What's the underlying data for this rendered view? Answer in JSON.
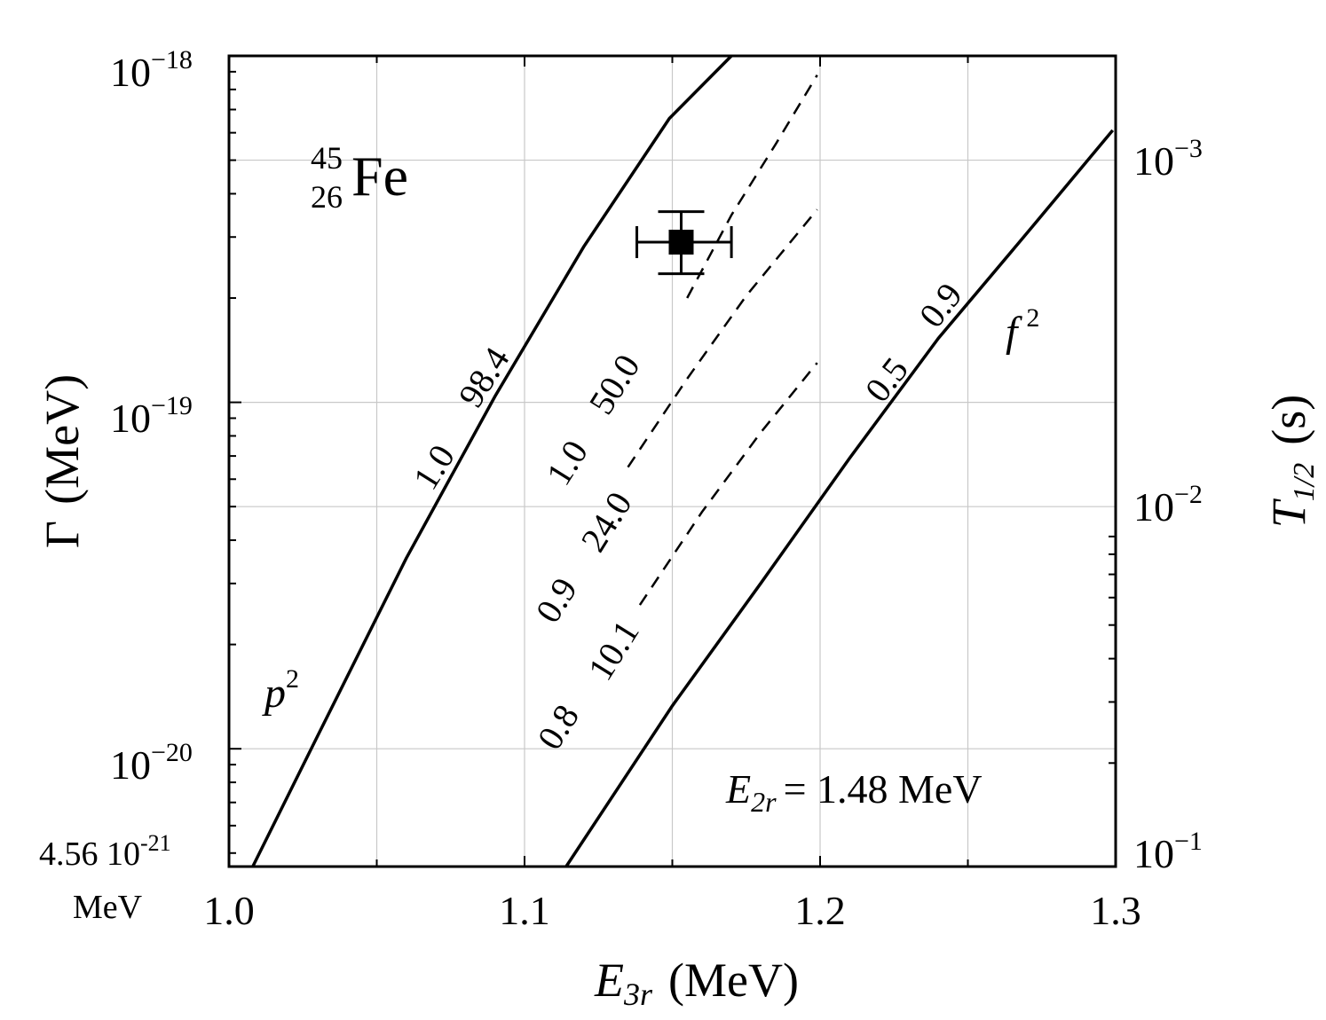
{
  "chart_data": {
    "type": "line",
    "x_axis": {
      "label": "E",
      "label_subscript": "3r",
      "label_unit": "(MeV)",
      "range": [
        1.0,
        1.3
      ],
      "ticks": [
        "1.0",
        "1.1",
        "1.2",
        "1.3"
      ],
      "tick_values": [
        1.0,
        1.1,
        1.2,
        1.3
      ]
    },
    "y_axis": {
      "label": "Γ",
      "label_unit": "(MeV)",
      "scale": "log",
      "range": [
        4.56e-21,
        1e-18
      ],
      "ticks": [
        {
          "value": 1e-18,
          "base": "10",
          "exp": "−18"
        },
        {
          "value": 1e-19,
          "base": "10",
          "exp": "−19"
        },
        {
          "value": 1e-20,
          "base": "10",
          "exp": "−20"
        }
      ],
      "bottom_label": "4.56 10",
      "bottom_label_exp": "-21",
      "bottom_unit": "MeV"
    },
    "y2_axis": {
      "label": "T",
      "label_subscript": "1/2",
      "label_unit": "(s)",
      "scale": "log",
      "inverted": true,
      "ticks": [
        {
          "value": 0.001,
          "base": "10",
          "exp": "−3"
        },
        {
          "value": 0.01,
          "base": "10",
          "exp": "−2"
        },
        {
          "value": 0.1,
          "base": "10",
          "exp": "−1"
        }
      ]
    },
    "grid": true,
    "series": [
      {
        "name": "p2",
        "style": "solid",
        "x": [
          1.008,
          1.03,
          1.06,
          1.09,
          1.12,
          1.149,
          1.17
        ],
        "y": [
          4.56e-21,
          1.09e-20,
          3.55e-20,
          1.04e-19,
          2.81e-19,
          6.6e-19,
          1e-18
        ]
      },
      {
        "name": "dashed-50.0",
        "style": "dashed",
        "x": [
          1.155,
          1.17,
          1.185,
          1.199
        ],
        "y": [
          2e-19,
          3.47e-19,
          5.57e-19,
          8.8e-19
        ]
      },
      {
        "name": "dashed-24.0",
        "style": "dashed",
        "x": [
          1.135,
          1.155,
          1.175,
          1.199
        ],
        "y": [
          6.5e-20,
          1.17e-19,
          2.03e-19,
          3.6e-19
        ]
      },
      {
        "name": "dashed-10.1",
        "style": "dashed",
        "x": [
          1.139,
          1.16,
          1.18,
          1.199
        ],
        "y": [
          2.6e-20,
          4.82e-20,
          8.2e-20,
          1.3e-19
        ]
      },
      {
        "name": "f2",
        "style": "solid",
        "x": [
          1.114,
          1.15,
          1.18,
          1.21,
          1.24,
          1.27,
          1.299
        ],
        "y": [
          4.56e-21,
          1.33e-20,
          3.01e-20,
          6.9e-20,
          1.53e-19,
          3.08e-19,
          6.1e-19
        ]
      }
    ],
    "data_point": {
      "x": 1.153,
      "y": 2.9e-19,
      "x_err": [
        1.138,
        1.17
      ],
      "y_err": [
        2.35e-19,
        3.55e-19
      ]
    },
    "annotations": {
      "isotope_mass": "45",
      "isotope_charge": "26",
      "isotope_symbol": "Fe",
      "p2_base": "p",
      "p2_exp": "2",
      "f2_base": "f",
      "f2_exp": "2",
      "p2_curve_label_a": "1.0",
      "p2_curve_label_b": "98.4",
      "dash50_label_a": "1.0",
      "dash50_label_b": "50.0",
      "dash24_label_a": "0.9",
      "dash24_label_b": "24.0",
      "dash10_label_a": "0.8",
      "dash10_label_b": "10.1",
      "f2_curve_label_a": "0.5",
      "f2_curve_label_b": "0.9",
      "e2r_symbol": "E",
      "e2r_sub": "2r",
      "e2r_value": "= 1.48 MeV"
    }
  }
}
